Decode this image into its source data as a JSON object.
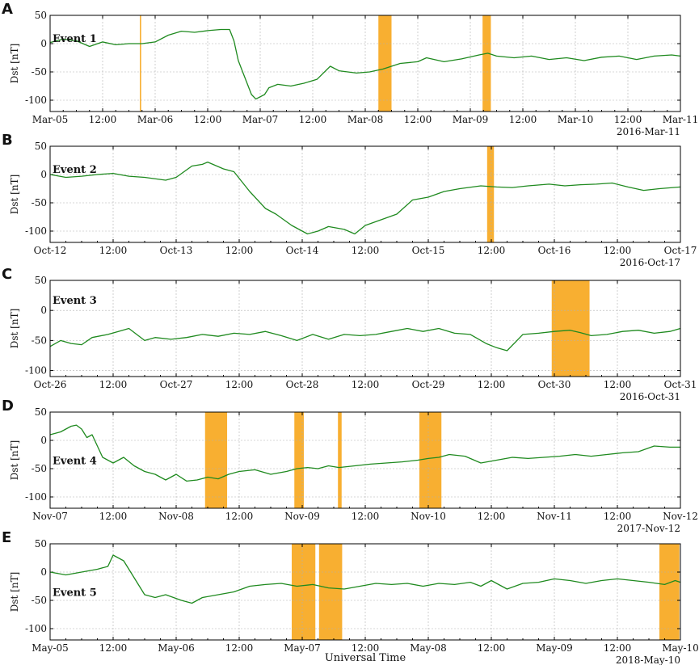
{
  "colors": {
    "line": "#1f8a1f",
    "shade": "#f7a820",
    "grid": "#b0b0b0"
  },
  "x_axis_title": "Universal Time",
  "chart_data": [
    {
      "panel_letter": "A",
      "event_label": "Event 1",
      "type": "line",
      "ylabel": "Dst [nT]",
      "ylim": [
        -120,
        50
      ],
      "yticks": [
        50,
        0,
        -50,
        -100
      ],
      "xlim_hours": [
        0,
        144
      ],
      "date_label": "2016-Mar-11",
      "x_tick_labels": [
        "Mar-05",
        "12:00",
        "Mar-06",
        "12:00",
        "Mar-07",
        "12:00",
        "Mar-08",
        "12:00",
        "Mar-09",
        "12:00",
        "Mar-10",
        "12:00",
        "Mar-11"
      ],
      "shaded_intervals_hours": [
        [
          20.5,
          20.8
        ],
        [
          75,
          78
        ],
        [
          98.8,
          100.7
        ]
      ],
      "series": [
        {
          "points": [
            [
              0,
              2
            ],
            [
              3,
              8
            ],
            [
              6,
              5
            ],
            [
              9,
              -5
            ],
            [
              12,
              3
            ],
            [
              15,
              -2
            ],
            [
              18,
              0
            ],
            [
              21,
              0
            ],
            [
              24,
              3
            ],
            [
              27,
              15
            ],
            [
              30,
              22
            ],
            [
              33,
              20
            ],
            [
              36,
              23
            ],
            [
              39,
              25
            ],
            [
              41,
              25
            ],
            [
              42,
              5
            ],
            [
              43,
              -30
            ],
            [
              44,
              -50
            ],
            [
              46,
              -90
            ],
            [
              47,
              -98
            ],
            [
              49,
              -90
            ],
            [
              50,
              -78
            ],
            [
              52,
              -72
            ],
            [
              55,
              -75
            ],
            [
              58,
              -70
            ],
            [
              61,
              -63
            ],
            [
              64,
              -40
            ],
            [
              66,
              -48
            ],
            [
              70,
              -52
            ],
            [
              73,
              -50
            ],
            [
              76,
              -45
            ],
            [
              80,
              -35
            ],
            [
              84,
              -32
            ],
            [
              86,
              -25
            ],
            [
              90,
              -32
            ],
            [
              94,
              -27
            ],
            [
              98,
              -20
            ],
            [
              100,
              -17
            ],
            [
              102,
              -22
            ],
            [
              106,
              -25
            ],
            [
              110,
              -22
            ],
            [
              114,
              -28
            ],
            [
              118,
              -25
            ],
            [
              122,
              -30
            ],
            [
              126,
              -24
            ],
            [
              130,
              -22
            ],
            [
              134,
              -28
            ],
            [
              138,
              -22
            ],
            [
              142,
              -20
            ],
            [
              144,
              -22
            ]
          ]
        }
      ]
    },
    {
      "panel_letter": "B",
      "event_label": "Event 2",
      "type": "line",
      "ylabel": "Dst [nT]",
      "ylim": [
        -120,
        50
      ],
      "yticks": [
        50,
        0,
        -50,
        -100
      ],
      "xlim_hours": [
        0,
        120
      ],
      "date_label": "2016-Oct-17",
      "x_tick_labels": [
        "Oct-12",
        "12:00",
        "Oct-13",
        "12:00",
        "Oct-14",
        "12:00",
        "Oct-15",
        "12:00",
        "Oct-16",
        "12:00",
        "Oct-17"
      ],
      "shaded_intervals_hours": [
        [
          83.2,
          84.5
        ]
      ],
      "series": [
        {
          "points": [
            [
              0,
              0
            ],
            [
              3,
              -5
            ],
            [
              6,
              -3
            ],
            [
              9,
              0
            ],
            [
              12,
              2
            ],
            [
              15,
              -3
            ],
            [
              18,
              -5
            ],
            [
              22,
              -10
            ],
            [
              24,
              -5
            ],
            [
              27,
              15
            ],
            [
              29,
              18
            ],
            [
              30,
              22
            ],
            [
              33,
              10
            ],
            [
              35,
              5
            ],
            [
              38,
              -30
            ],
            [
              41,
              -60
            ],
            [
              43,
              -70
            ],
            [
              46,
              -90
            ],
            [
              49,
              -105
            ],
            [
              51,
              -100
            ],
            [
              53,
              -92
            ],
            [
              56,
              -97
            ],
            [
              58,
              -105
            ],
            [
              60,
              -90
            ],
            [
              63,
              -80
            ],
            [
              66,
              -70
            ],
            [
              69,
              -45
            ],
            [
              72,
              -40
            ],
            [
              75,
              -30
            ],
            [
              78,
              -25
            ],
            [
              82,
              -20
            ],
            [
              85,
              -22
            ],
            [
              88,
              -23
            ],
            [
              91,
              -20
            ],
            [
              95,
              -17
            ],
            [
              98,
              -20
            ],
            [
              101,
              -18
            ],
            [
              104,
              -17
            ],
            [
              107,
              -15
            ],
            [
              110,
              -22
            ],
            [
              113,
              -28
            ],
            [
              116,
              -25
            ],
            [
              120,
              -22
            ]
          ]
        }
      ]
    },
    {
      "panel_letter": "C",
      "event_label": "Event 3",
      "type": "line",
      "ylabel": "Dst [nT]",
      "ylim": [
        -110,
        50
      ],
      "yticks": [
        50,
        0,
        -50,
        -100
      ],
      "xlim_hours": [
        0,
        120
      ],
      "date_label": "2016-Oct-31",
      "x_tick_labels": [
        "Oct-26",
        "12:00",
        "Oct-27",
        "12:00",
        "Oct-28",
        "12:00",
        "Oct-29",
        "12:00",
        "Oct-30",
        "12:00",
        "Oct-31"
      ],
      "shaded_intervals_hours": [
        [
          95.5,
          102.7
        ]
      ],
      "series": [
        {
          "points": [
            [
              0,
              -60
            ],
            [
              2,
              -50
            ],
            [
              4,
              -55
            ],
            [
              6,
              -57
            ],
            [
              8,
              -45
            ],
            [
              11,
              -40
            ],
            [
              13,
              -35
            ],
            [
              15,
              -30
            ],
            [
              18,
              -50
            ],
            [
              20,
              -45
            ],
            [
              23,
              -48
            ],
            [
              26,
              -45
            ],
            [
              29,
              -40
            ],
            [
              32,
              -43
            ],
            [
              35,
              -38
            ],
            [
              38,
              -40
            ],
            [
              41,
              -35
            ],
            [
              44,
              -42
            ],
            [
              47,
              -50
            ],
            [
              50,
              -40
            ],
            [
              53,
              -48
            ],
            [
              56,
              -40
            ],
            [
              59,
              -42
            ],
            [
              62,
              -40
            ],
            [
              65,
              -35
            ],
            [
              68,
              -30
            ],
            [
              71,
              -35
            ],
            [
              74,
              -30
            ],
            [
              77,
              -38
            ],
            [
              80,
              -40
            ],
            [
              83,
              -55
            ],
            [
              85,
              -62
            ],
            [
              87,
              -67
            ],
            [
              90,
              -40
            ],
            [
              93,
              -38
            ],
            [
              96,
              -35
            ],
            [
              99,
              -33
            ],
            [
              101,
              -37
            ],
            [
              103,
              -42
            ],
            [
              106,
              -40
            ],
            [
              109,
              -35
            ],
            [
              112,
              -33
            ],
            [
              115,
              -38
            ],
            [
              118,
              -35
            ],
            [
              120,
              -30
            ]
          ]
        }
      ]
    },
    {
      "panel_letter": "D",
      "event_label": "Event 4",
      "type": "line",
      "ylabel": "Dst [nT]",
      "ylim": [
        -120,
        50
      ],
      "yticks": [
        50,
        0,
        -50,
        -100
      ],
      "xlim_hours": [
        0,
        120
      ],
      "date_label": "2017-Nov-12",
      "x_tick_labels": [
        "Nov-07",
        "12:00",
        "Nov-08",
        "12:00",
        "Nov-09",
        "12:00",
        "Nov-10",
        "12:00",
        "Nov-11",
        "12:00",
        "Nov-12"
      ],
      "shaded_intervals_hours": [
        [
          29.5,
          33.7
        ],
        [
          46.5,
          48.3
        ],
        [
          54.8,
          55.5
        ],
        [
          70.3,
          74.5
        ]
      ],
      "series": [
        {
          "points": [
            [
              0,
              10
            ],
            [
              2,
              15
            ],
            [
              4,
              25
            ],
            [
              5,
              27
            ],
            [
              6,
              20
            ],
            [
              7,
              5
            ],
            [
              8,
              10
            ],
            [
              9,
              -10
            ],
            [
              10,
              -30
            ],
            [
              12,
              -40
            ],
            [
              14,
              -30
            ],
            [
              16,
              -45
            ],
            [
              18,
              -55
            ],
            [
              20,
              -60
            ],
            [
              22,
              -70
            ],
            [
              24,
              -60
            ],
            [
              26,
              -72
            ],
            [
              28,
              -70
            ],
            [
              30,
              -65
            ],
            [
              32,
              -68
            ],
            [
              34,
              -60
            ],
            [
              36,
              -55
            ],
            [
              39,
              -52
            ],
            [
              42,
              -60
            ],
            [
              45,
              -55
            ],
            [
              47,
              -50
            ],
            [
              49,
              -48
            ],
            [
              51,
              -50
            ],
            [
              53,
              -45
            ],
            [
              55,
              -48
            ],
            [
              58,
              -45
            ],
            [
              61,
              -42
            ],
            [
              64,
              -40
            ],
            [
              67,
              -38
            ],
            [
              70,
              -35
            ],
            [
              72,
              -32
            ],
            [
              74,
              -30
            ],
            [
              76,
              -25
            ],
            [
              79,
              -28
            ],
            [
              82,
              -40
            ],
            [
              85,
              -35
            ],
            [
              88,
              -30
            ],
            [
              91,
              -32
            ],
            [
              94,
              -30
            ],
            [
              97,
              -28
            ],
            [
              100,
              -25
            ],
            [
              103,
              -28
            ],
            [
              106,
              -25
            ],
            [
              109,
              -22
            ],
            [
              112,
              -20
            ],
            [
              115,
              -10
            ],
            [
              118,
              -12
            ],
            [
              120,
              -12
            ]
          ]
        }
      ]
    },
    {
      "panel_letter": "E",
      "event_label": "Event 5",
      "type": "line",
      "ylabel": "Dst [nT]",
      "ylim": [
        -120,
        50
      ],
      "yticks": [
        50,
        0,
        -50,
        -100
      ],
      "xlim_hours": [
        0,
        120
      ],
      "date_label": "2018-May-10",
      "x_tick_labels": [
        "May-05",
        "12:00",
        "May-06",
        "12:00",
        "May-07",
        "12:00",
        "May-08",
        "12:00",
        "May-09",
        "12:00",
        "May-10"
      ],
      "shaded_intervals_hours": [
        [
          46,
          50.5
        ],
        [
          51.2,
          55.6
        ],
        [
          116,
          119.8
        ]
      ],
      "series": [
        {
          "points": [
            [
              0,
              0
            ],
            [
              3,
              -5
            ],
            [
              6,
              0
            ],
            [
              9,
              5
            ],
            [
              11,
              10
            ],
            [
              12,
              30
            ],
            [
              14,
              20
            ],
            [
              16,
              -10
            ],
            [
              18,
              -40
            ],
            [
              20,
              -45
            ],
            [
              22,
              -40
            ],
            [
              25,
              -50
            ],
            [
              27,
              -55
            ],
            [
              29,
              -45
            ],
            [
              32,
              -40
            ],
            [
              35,
              -35
            ],
            [
              38,
              -25
            ],
            [
              41,
              -22
            ],
            [
              44,
              -20
            ],
            [
              47,
              -25
            ],
            [
              50,
              -22
            ],
            [
              53,
              -28
            ],
            [
              56,
              -30
            ],
            [
              59,
              -25
            ],
            [
              62,
              -20
            ],
            [
              65,
              -22
            ],
            [
              68,
              -20
            ],
            [
              71,
              -25
            ],
            [
              74,
              -20
            ],
            [
              77,
              -22
            ],
            [
              80,
              -18
            ],
            [
              82,
              -25
            ],
            [
              84,
              -15
            ],
            [
              87,
              -30
            ],
            [
              90,
              -20
            ],
            [
              93,
              -18
            ],
            [
              96,
              -12
            ],
            [
              99,
              -15
            ],
            [
              102,
              -20
            ],
            [
              105,
              -15
            ],
            [
              108,
              -12
            ],
            [
              111,
              -15
            ],
            [
              114,
              -18
            ],
            [
              117,
              -22
            ],
            [
              119,
              -15
            ],
            [
              120,
              -18
            ]
          ]
        }
      ]
    }
  ]
}
